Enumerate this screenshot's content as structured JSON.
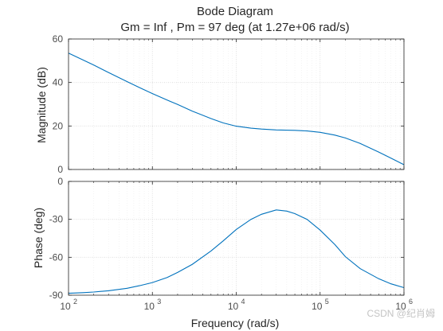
{
  "colors": {
    "line": "#0072bd",
    "axis": "#262626",
    "grid": "#d9d9d9",
    "tick_text": "#4d4d4d"
  },
  "watermark": "CSDN @纪肖姆",
  "chart_data": {
    "type": "line",
    "title": "Bode Diagram",
    "subtitle": "Gm = Inf ,  Pm = 97 deg (at 1.27e+06 rad/s)",
    "xlabel": "Frequency  (rad/s)",
    "xscale": "log",
    "xlim": [
      100,
      1000000
    ],
    "x_ticks": [
      {
        "base": "10",
        "exp": "2",
        "value": 100
      },
      {
        "base": "10",
        "exp": "3",
        "value": 1000
      },
      {
        "base": "10",
        "exp": "4",
        "value": 10000
      },
      {
        "base": "10",
        "exp": "5",
        "value": 100000
      },
      {
        "base": "10",
        "exp": "6",
        "value": 1000000
      }
    ],
    "grid": true,
    "magnitude": {
      "ylabel": "Magnitude (dB)",
      "ylim": [
        0,
        60
      ],
      "y_ticks": [
        0,
        20,
        40,
        60
      ],
      "x": [
        100,
        150,
        200,
        300,
        500,
        700,
        1000,
        1500,
        2000,
        3000,
        5000,
        7000,
        10000,
        15000,
        20000,
        30000,
        50000,
        70000,
        100000,
        150000,
        200000,
        300000,
        500000,
        700000,
        1000000
      ],
      "y": [
        53.5,
        50.3,
        48.0,
        44.6,
        40.4,
        37.7,
        34.9,
        31.9,
        29.9,
        26.8,
        23.4,
        21.4,
        19.9,
        19.0,
        18.6,
        18.2,
        18.0,
        17.7,
        17.1,
        15.8,
        14.5,
        12.0,
        8.0,
        5.2,
        2.2
      ]
    },
    "phase": {
      "ylabel": "Phase (deg)",
      "ylim": [
        -90,
        0
      ],
      "y_ticks": [
        -90,
        -60,
        -30,
        0
      ],
      "x": [
        100,
        150,
        200,
        300,
        500,
        700,
        1000,
        1500,
        2000,
        3000,
        5000,
        7000,
        10000,
        15000,
        20000,
        30000,
        40000,
        50000,
        70000,
        100000,
        150000,
        200000,
        300000,
        500000,
        700000,
        1000000
      ],
      "y": [
        -88.5,
        -88.0,
        -87.5,
        -86.5,
        -84.5,
        -82.5,
        -80.0,
        -76.0,
        -72.0,
        -65.5,
        -55.0,
        -47.0,
        -38.0,
        -30.0,
        -26.0,
        -22.5,
        -23.5,
        -25.5,
        -30.0,
        -38.5,
        -50.0,
        -59.5,
        -69.0,
        -77.0,
        -81.0,
        -84.0
      ]
    }
  }
}
